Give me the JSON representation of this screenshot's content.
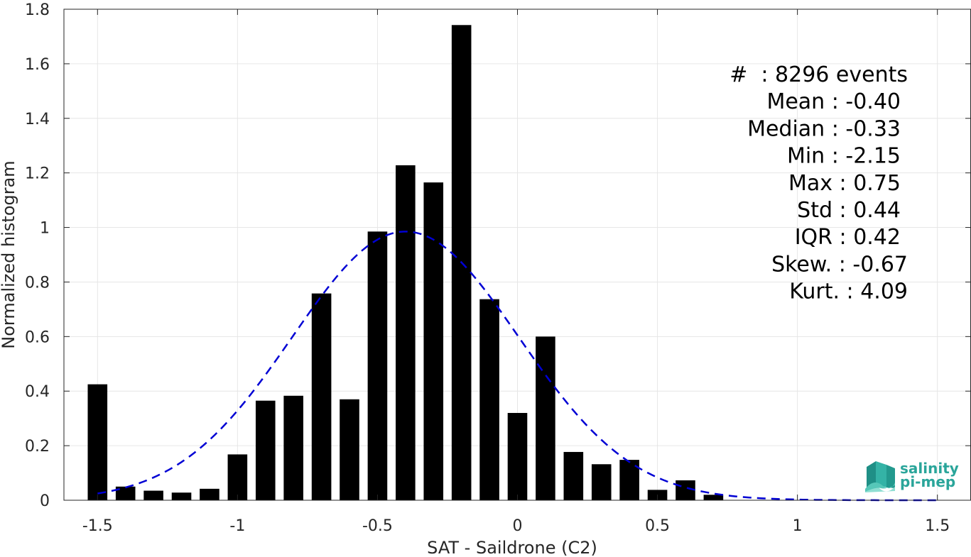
{
  "chart_data": {
    "type": "bar",
    "xlabel": "SAT - Saildrone (C2)",
    "ylabel": "Normalized histogram",
    "xlim": [
      -1.62,
      1.62
    ],
    "ylim": [
      0,
      1.8
    ],
    "xticks": [
      -1.5,
      -1,
      -0.5,
      0,
      0.5,
      1,
      1.5
    ],
    "xtick_labels": [
      "-1.5",
      "-1",
      "-0.5",
      "0",
      "0.5",
      "1",
      "1.5"
    ],
    "yticks": [
      0,
      0.2,
      0.4,
      0.6,
      0.8,
      1,
      1.2,
      1.4,
      1.6,
      1.8
    ],
    "ytick_labels": [
      "0",
      "0.2",
      "0.4",
      "0.6",
      "0.8",
      "1",
      "1.2",
      "1.4",
      "1.6",
      "1.8"
    ],
    "grid": true,
    "bar_color": "#000000",
    "bar_width": 0.07,
    "bars": {
      "x": [
        -1.5,
        -1.4,
        -1.3,
        -1.2,
        -1.1,
        -1.0,
        -0.9,
        -0.8,
        -0.7,
        -0.6,
        -0.5,
        -0.4,
        -0.3,
        -0.2,
        -0.1,
        0.0,
        0.1,
        0.2,
        0.3,
        0.4,
        0.5,
        0.6,
        0.7
      ],
      "values": [
        0.425,
        0.05,
        0.035,
        0.028,
        0.042,
        0.168,
        0.365,
        0.383,
        0.758,
        0.37,
        0.985,
        1.228,
        1.165,
        1.742,
        0.737,
        0.32,
        0.6,
        0.177,
        0.132,
        0.148,
        0.038,
        0.073,
        0.02
      ]
    },
    "fit_curve": {
      "style": "dashed",
      "color": "#0000d4",
      "mean": -0.4,
      "std": 0.405,
      "x_range": [
        -1.5,
        1.5
      ]
    },
    "stats": [
      {
        "label": "#  ",
        "value": ": 8296 events"
      },
      {
        "label": "Mean ",
        "value": ": -0.40"
      },
      {
        "label": "Median ",
        "value": ": -0.33"
      },
      {
        "label": "Min ",
        "value": ": -2.15"
      },
      {
        "label": "Max ",
        "value": ": 0.75"
      },
      {
        "label": "Std ",
        "value": ": 0.44"
      },
      {
        "label": "IQR ",
        "value": ": 0.42"
      },
      {
        "label": "Skew. ",
        "value": ": -0.67"
      },
      {
        "label": "Kurt. ",
        "value": ": 4.09"
      }
    ]
  },
  "logo": {
    "line1": "salinity",
    "line2": "pi-mep",
    "color": "#2aa59a"
  }
}
